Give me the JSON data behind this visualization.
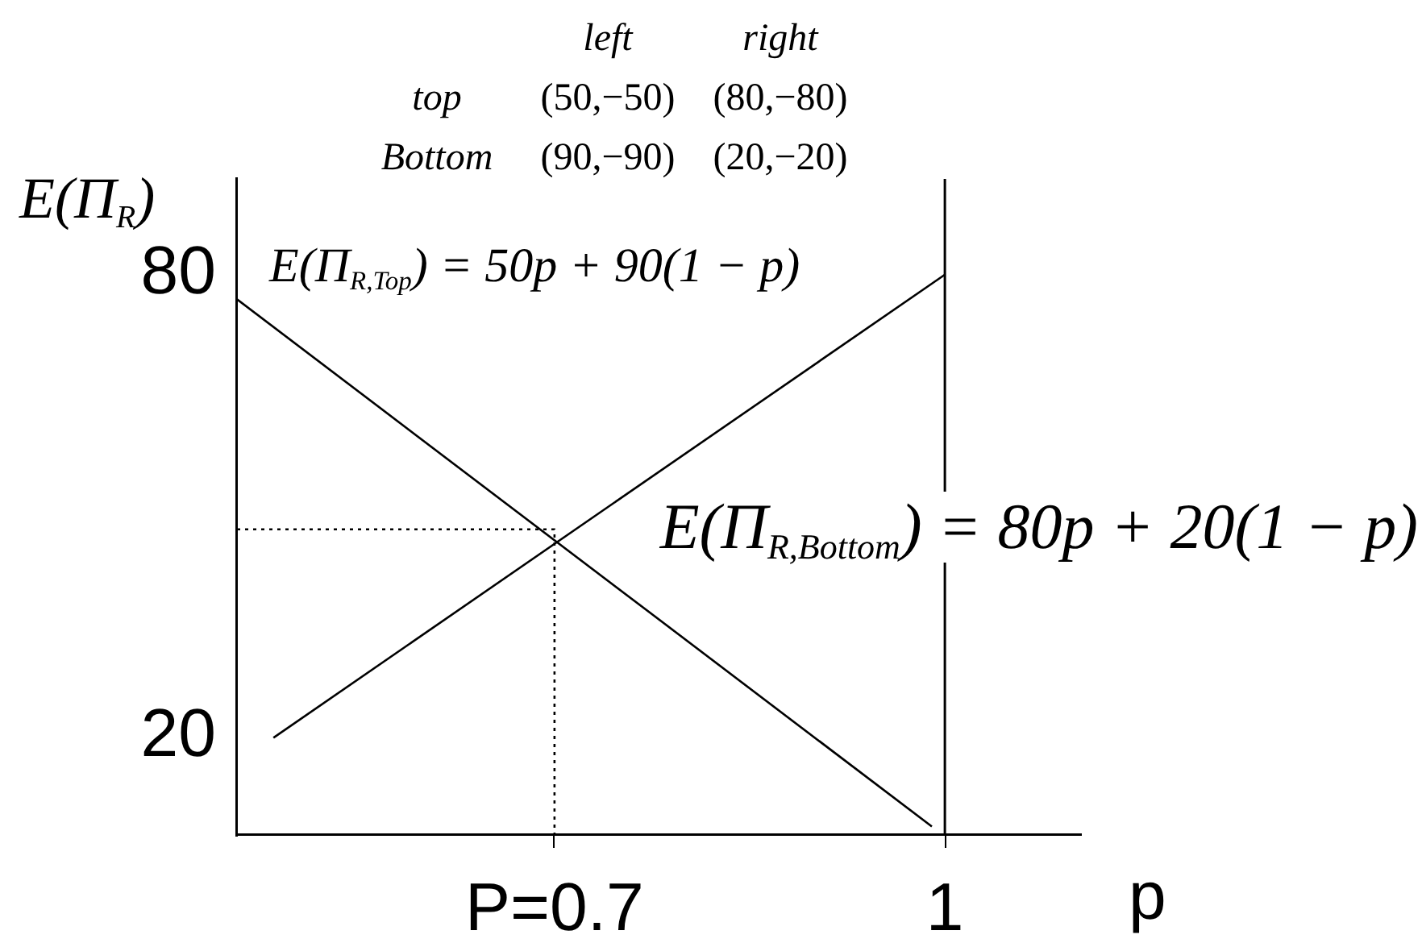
{
  "chart_data": {
    "type": "line",
    "annotations": [
      "left",
      "right",
      "top",
      "(50,−50)",
      "(80,−80)",
      "Bottom",
      "(90,−90)",
      "(20,−20)"
    ],
    "xlabel": "p",
    "ylabel": "E(Π$_{R}$)",
    "xlim": [
      0.456,
      1.104
    ],
    "xticks": [
      {
        "value": 0.7,
        "label": "P=0.7"
      },
      1
    ],
    "ylim": [
      7.4,
      92.4
    ],
    "yticks": [
      20,
      80
    ],
    "ref_lines": [
      {
        "axis": "x",
        "value": 1,
        "color": "#000000",
        "line_style": "solid"
      }
    ],
    "marker": "none",
    "line_style": "solid",
    "series": [
      {
        "name": "E(Π$_{R,Top}$) = 50p + 90(1 − p)",
        "color": "#000000",
        "x": [
          0.456,
          0.99
        ],
        "values": [
          76.8,
          8.5
        ]
      },
      {
        "name": "E(Π$_{R,Bottom}$) = 80p + 20(1 − p)",
        "color": "#000000",
        "x": [
          0.484,
          1
        ],
        "values": [
          20,
          80
        ]
      },
      {
        "color": "#000000",
        "line_style": "dotted",
        "x": [
          0.456,
          0.7,
          0.7
        ],
        "values": [
          47,
          47,
          7.4
        ]
      }
    ]
  }
}
